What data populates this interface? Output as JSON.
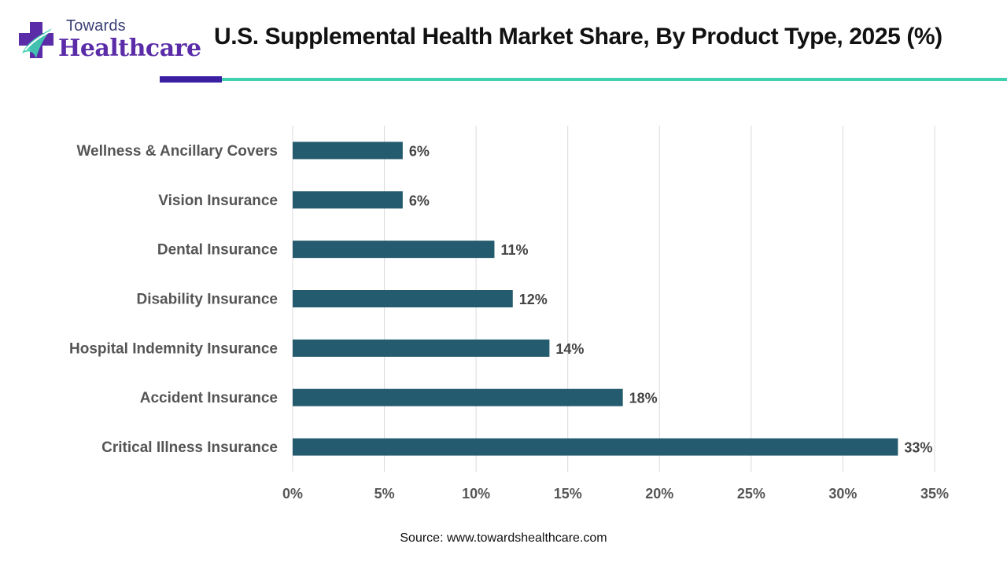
{
  "logo": {
    "word_top": "Towards",
    "word_main": "Healthcare"
  },
  "colors": {
    "bar": "#245b6e",
    "grid": "#d9d9d9",
    "rule_dark": "#3b1fa3",
    "rule_teal": "#3fd0b0"
  },
  "source": "Source: www.towardshealthcare.com",
  "chart_data": {
    "type": "bar",
    "orientation": "horizontal",
    "title": "U.S. Supplemental Health Market Share, By Product Type, 2025 (%)",
    "categories": [
      "Wellness & Ancillary Covers",
      "Vision Insurance",
      "Dental Insurance",
      "Disability Insurance",
      "Hospital Indemnity Insurance",
      "Accident Insurance",
      "Critical Illness Insurance"
    ],
    "values": [
      6,
      6,
      11,
      12,
      14,
      18,
      33
    ],
    "data_labels": [
      "6%",
      "6%",
      "11%",
      "12%",
      "14%",
      "18%",
      "33%"
    ],
    "xlim": [
      0,
      35
    ],
    "x_ticks": [
      0,
      5,
      10,
      15,
      20,
      25,
      30,
      35
    ],
    "x_tick_labels": [
      "0%",
      "5%",
      "10%",
      "15%",
      "20%",
      "25%",
      "30%",
      "35%"
    ],
    "grid": "vertical",
    "legend": "none"
  }
}
